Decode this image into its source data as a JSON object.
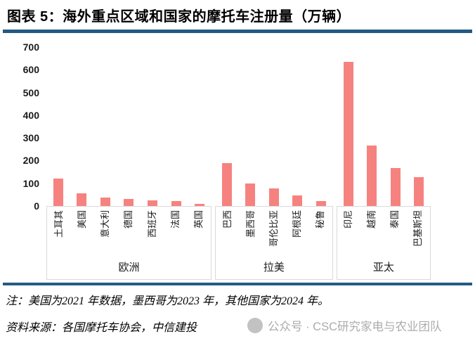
{
  "header": {
    "title": "图表 5：海外重点区域和国家的摩托车注册量（万辆）"
  },
  "chart_data": {
    "type": "bar",
    "title": "海外重点区域和国家的摩托车注册量（万辆）",
    "unit": "万辆",
    "ylim": [
      0,
      700
    ],
    "yticks": [
      0,
      100,
      200,
      300,
      400,
      500,
      600,
      700
    ],
    "grid": false,
    "legend": false,
    "bar_color": "#f6827f",
    "groups": [
      {
        "label": "欧洲",
        "categories": [
          "土耳其",
          "美国",
          "意大利",
          "德国",
          "西班牙",
          "法国",
          "英国"
        ],
        "values": [
          120,
          57,
          38,
          30,
          25,
          22,
          10
        ]
      },
      {
        "label": "拉美",
        "categories": [
          "巴西",
          "墨西哥",
          "哥伦比亚",
          "阿根廷",
          "秘鲁"
        ],
        "values": [
          188,
          100,
          78,
          47,
          21
        ]
      },
      {
        "label": "亚太",
        "categories": [
          "印尼",
          "越南",
          "泰国",
          "巴基斯坦"
        ],
        "values": [
          635,
          266,
          168,
          127
        ]
      }
    ]
  },
  "footer": {
    "note": "注：美国为2021 年数据，墨西哥为2023 年，其他国家为2024 年。",
    "source": "资料来源：各国摩托车协会，中信建投",
    "watermark": "公众号 · CSC研究家电与农业团队"
  },
  "colors": {
    "accent_line": "#235a84",
    "bar": "#f6827f",
    "watermark_gray": "#acacac",
    "box_border": "#d9d9d9"
  }
}
